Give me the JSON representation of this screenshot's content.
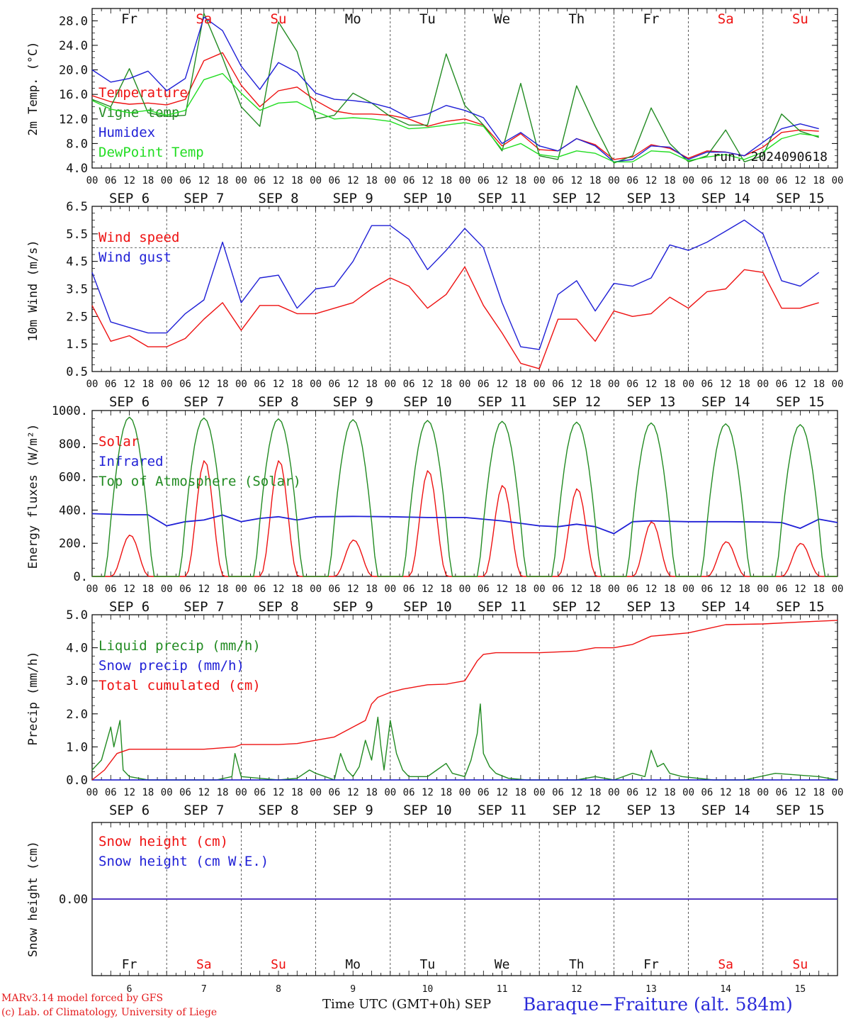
{
  "chart_data": [
    {
      "type": "line",
      "ylabel": "2m Temp. (°C)",
      "ylim": [
        4,
        30
      ],
      "yticks": [
        "4.0",
        "8.0",
        "12.0",
        "16.0",
        "20.0",
        "24.0",
        "28.0"
      ],
      "yticks_values": [
        4,
        8,
        12,
        16,
        20,
        24,
        28
      ],
      "refline": null,
      "annotation": "run: 2024090618",
      "series": [
        {
          "name": "Temperature",
          "color": "#ee1111",
          "x_hours": [
            0,
            6,
            12,
            18,
            24,
            30,
            36,
            42,
            48,
            54,
            60,
            66,
            72,
            78,
            84,
            90,
            96,
            102,
            108,
            114,
            120,
            126,
            132,
            138,
            144,
            150,
            156,
            162,
            168,
            174,
            180,
            186,
            192,
            198,
            204,
            210,
            216,
            222,
            228,
            234
          ],
          "values": [
            15.8,
            14.8,
            14.4,
            14.6,
            14.3,
            15.2,
            21.5,
            22.8,
            17.5,
            14.0,
            16.6,
            17.2,
            15.0,
            13.3,
            12.8,
            12.8,
            12.6,
            12.0,
            10.8,
            11.6,
            12.0,
            11.0,
            7.6,
            9.6,
            7.0,
            6.8,
            8.8,
            7.8,
            5.4,
            5.8,
            7.8,
            7.2,
            5.6,
            6.8,
            6.6,
            6.0,
            7.4,
            9.8,
            10.2,
            10.0
          ]
        },
        {
          "name": "Vigne temp",
          "color": "#228b22",
          "x_hours": [
            0,
            6,
            12,
            18,
            24,
            30,
            36,
            42,
            48,
            54,
            60,
            66,
            72,
            78,
            84,
            90,
            96,
            102,
            108,
            114,
            120,
            126,
            132,
            138,
            144,
            150,
            156,
            162,
            168,
            174,
            180,
            186,
            192,
            198,
            204,
            210,
            216,
            222,
            228,
            234
          ],
          "values": [
            15.2,
            14.0,
            20.2,
            13.0,
            12.4,
            12.6,
            29.2,
            22.0,
            14.0,
            10.8,
            27.8,
            23.0,
            12.0,
            12.6,
            16.2,
            14.6,
            12.4,
            11.0,
            11.0,
            22.6,
            14.2,
            11.0,
            6.8,
            17.8,
            6.0,
            5.4,
            17.4,
            10.8,
            4.8,
            6.0,
            13.8,
            8.0,
            5.0,
            6.0,
            10.2,
            5.0,
            6.0,
            12.8,
            10.0,
            9.0
          ]
        },
        {
          "name": "Humidex",
          "color": "#1f1fd6",
          "x_hours": [
            0,
            6,
            12,
            18,
            24,
            30,
            36,
            42,
            48,
            54,
            60,
            66,
            72,
            78,
            84,
            90,
            96,
            102,
            108,
            114,
            120,
            126,
            132,
            138,
            144,
            150,
            156,
            162,
            168,
            174,
            180,
            186,
            192,
            198,
            204,
            210,
            216,
            222,
            228,
            234
          ],
          "values": [
            20.0,
            18.0,
            18.6,
            19.8,
            16.6,
            18.6,
            28.6,
            26.4,
            20.6,
            16.8,
            21.2,
            19.6,
            16.2,
            15.2,
            15.0,
            14.6,
            13.8,
            12.2,
            12.8,
            14.2,
            13.4,
            12.2,
            8.0,
            9.8,
            7.6,
            6.8,
            8.8,
            7.6,
            5.0,
            5.4,
            7.6,
            7.4,
            5.4,
            6.6,
            6.6,
            6.0,
            8.2,
            10.4,
            11.2,
            10.4
          ]
        },
        {
          "name": "DewPoint Temp",
          "color": "#22dd22",
          "x_hours": [
            0,
            6,
            12,
            18,
            24,
            30,
            36,
            42,
            48,
            54,
            60,
            66,
            72,
            78,
            84,
            90,
            96,
            102,
            108,
            114,
            120,
            126,
            132,
            138,
            144,
            150,
            156,
            162,
            168,
            174,
            180,
            186,
            192,
            198,
            204,
            210,
            216,
            222,
            228,
            234
          ],
          "values": [
            15.0,
            13.6,
            13.0,
            13.4,
            12.6,
            13.4,
            18.4,
            19.4,
            16.2,
            13.4,
            14.6,
            14.8,
            13.2,
            12.0,
            12.2,
            12.0,
            11.6,
            10.4,
            10.6,
            11.0,
            11.4,
            10.8,
            7.0,
            8.0,
            6.2,
            5.8,
            6.8,
            6.4,
            5.0,
            5.0,
            6.8,
            6.6,
            5.2,
            5.8,
            6.2,
            5.4,
            6.6,
            8.8,
            9.6,
            9.2
          ]
        }
      ]
    },
    {
      "type": "line",
      "ylabel": "10m Wind (m/s)",
      "ylim": [
        0.5,
        6.5
      ],
      "yticks": [
        "0.5",
        "1.5",
        "2.5",
        "3.5",
        "4.5",
        "5.5",
        "6.5"
      ],
      "yticks_values": [
        0.5,
        1.5,
        2.5,
        3.5,
        4.5,
        5.5,
        6.5
      ],
      "refline": 5,
      "series": [
        {
          "name": "Wind speed",
          "color": "#ee1111",
          "x_hours": [
            0,
            6,
            12,
            18,
            24,
            30,
            36,
            42,
            48,
            54,
            60,
            66,
            72,
            78,
            84,
            90,
            96,
            102,
            108,
            114,
            120,
            126,
            132,
            138,
            144,
            150,
            156,
            162,
            168,
            174,
            180,
            186,
            192,
            198,
            204,
            210,
            216,
            222,
            228,
            234
          ],
          "values": [
            2.9,
            1.6,
            1.8,
            1.4,
            1.4,
            1.7,
            2.4,
            3.0,
            2.0,
            2.9,
            2.9,
            2.6,
            2.6,
            2.8,
            3.0,
            3.5,
            3.9,
            3.6,
            2.8,
            3.3,
            4.3,
            2.9,
            1.9,
            0.8,
            0.6,
            2.4,
            2.4,
            1.6,
            2.7,
            2.5,
            2.6,
            3.2,
            2.8,
            3.4,
            3.5,
            4.2,
            4.1,
            2.8,
            2.8,
            3.0
          ]
        },
        {
          "name": "Wind gust",
          "color": "#1f1fd6",
          "x_hours": [
            0,
            6,
            12,
            18,
            24,
            30,
            36,
            42,
            48,
            54,
            60,
            66,
            72,
            78,
            84,
            90,
            96,
            102,
            108,
            114,
            120,
            126,
            132,
            138,
            144,
            150,
            156,
            162,
            168,
            174,
            180,
            186,
            192,
            198,
            204,
            210,
            216,
            222,
            228,
            234
          ],
          "values": [
            4.1,
            2.3,
            2.1,
            1.9,
            1.9,
            2.6,
            3.1,
            5.2,
            3.0,
            3.9,
            4.0,
            2.8,
            3.5,
            3.6,
            4.5,
            5.8,
            5.8,
            5.3,
            4.2,
            4.9,
            5.7,
            5.0,
            3.0,
            1.4,
            1.3,
            3.3,
            3.8,
            2.7,
            3.7,
            3.6,
            3.9,
            5.1,
            4.9,
            5.2,
            5.6,
            6.0,
            5.5,
            3.8,
            3.6,
            4.1
          ]
        }
      ]
    },
    {
      "type": "line",
      "ylabel": "Energy fluxes (W/m²)",
      "ylim": [
        0,
        1000
      ],
      "yticks": [
        "0.",
        "200.",
        "400.",
        "600.",
        "800.",
        "1000."
      ],
      "yticks_values": [
        0,
        200,
        400,
        600,
        800,
        1000
      ],
      "refline": null,
      "series": [
        {
          "name": "Solar",
          "color": "#ee1111",
          "daily_peaks": [
            250,
            700,
            700,
            220,
            640,
            550,
            530,
            330,
            210,
            200
          ]
        },
        {
          "name": "Infrared",
          "color": "#1f1fd6",
          "x_hours": [
            0,
            12,
            18,
            24,
            30,
            36,
            42,
            48,
            54,
            60,
            66,
            72,
            84,
            96,
            108,
            120,
            132,
            144,
            150,
            156,
            162,
            168,
            174,
            180,
            192,
            204,
            216,
            222,
            228,
            234,
            240
          ],
          "values": [
            378,
            372,
            372,
            305,
            330,
            340,
            370,
            330,
            350,
            360,
            340,
            360,
            362,
            360,
            355,
            355,
            335,
            305,
            300,
            315,
            300,
            258,
            330,
            335,
            330,
            330,
            328,
            325,
            290,
            345,
            325
          ]
        },
        {
          "name": "Top of Atmosphere (Solar)",
          "color": "#228b22",
          "daily_peaks": [
            960,
            955,
            950,
            945,
            940,
            935,
            930,
            925,
            920,
            915
          ]
        }
      ]
    },
    {
      "type": "line",
      "ylabel": "Precip (mm/h)",
      "ylim": [
        0,
        5
      ],
      "yticks": [
        "0.0",
        "1.0",
        "2.0",
        "3.0",
        "4.0",
        "5.0"
      ],
      "yticks_values": [
        0,
        1,
        2,
        3,
        4,
        5
      ],
      "refline": null,
      "series": [
        {
          "name": "Liquid precip (mm/h)",
          "color": "#228b22",
          "x_hours": [
            0,
            3,
            6,
            7,
            9,
            10,
            12,
            15,
            18,
            24,
            36,
            40,
            45,
            46,
            48,
            60,
            66,
            70,
            72,
            75,
            78,
            80,
            82,
            84,
            86,
            88,
            90,
            92,
            93,
            94,
            96,
            98,
            100,
            102,
            108,
            111,
            114,
            116,
            120,
            122,
            124,
            125,
            126,
            128,
            130,
            134,
            140,
            156,
            162,
            168,
            174,
            178,
            180,
            182,
            184,
            186,
            190,
            200,
            210,
            220,
            234,
            240
          ],
          "values": [
            0.3,
            0.6,
            1.6,
            1.0,
            1.8,
            0.3,
            0.1,
            0.05,
            0.0,
            0.0,
            0.0,
            0.0,
            0.1,
            0.8,
            0.1,
            0.0,
            0.05,
            0.3,
            0.2,
            0.1,
            0.0,
            0.8,
            0.3,
            0.1,
            0.4,
            1.2,
            0.6,
            1.9,
            1.0,
            0.3,
            1.8,
            0.8,
            0.3,
            0.1,
            0.1,
            0.3,
            0.5,
            0.2,
            0.1,
            0.6,
            1.4,
            2.3,
            0.8,
            0.4,
            0.2,
            0.05,
            0.0,
            0.0,
            0.1,
            0.0,
            0.2,
            0.1,
            0.9,
            0.4,
            0.5,
            0.2,
            0.1,
            0.0,
            0.0,
            0.2,
            0.1,
            0.0
          ]
        },
        {
          "name": "Snow precip (mm/h)",
          "color": "#1f1fd6",
          "x_hours": [
            0,
            240
          ],
          "values": [
            0,
            0
          ]
        },
        {
          "name": "Total cumulated (cm)",
          "color": "#ee1111",
          "x_hours": [
            0,
            4,
            8,
            12,
            24,
            36,
            46,
            48,
            60,
            66,
            72,
            78,
            84,
            88,
            90,
            92,
            96,
            100,
            108,
            114,
            120,
            122,
            124,
            126,
            130,
            144,
            156,
            162,
            168,
            174,
            180,
            186,
            192,
            204,
            216,
            228,
            240
          ],
          "values": [
            0.0,
            0.3,
            0.8,
            0.93,
            0.93,
            0.93,
            1.0,
            1.07,
            1.07,
            1.1,
            1.2,
            1.3,
            1.6,
            1.8,
            2.3,
            2.5,
            2.65,
            2.75,
            2.88,
            2.9,
            3.0,
            3.3,
            3.6,
            3.8,
            3.85,
            3.85,
            3.9,
            4.0,
            4.0,
            4.1,
            4.35,
            4.4,
            4.45,
            4.7,
            4.72,
            4.78,
            4.83
          ]
        }
      ]
    },
    {
      "type": "line",
      "ylabel": "Snow height (cm)",
      "ylim": [
        -1,
        1
      ],
      "yticks": [
        "0.00"
      ],
      "yticks_values": [
        0
      ],
      "refline": null,
      "series": [
        {
          "name": "Snow height (cm)",
          "color": "#ee1111",
          "x_hours": [
            0,
            240
          ],
          "values": [
            0,
            0
          ]
        },
        {
          "name": "Snow height (cm W.E.)",
          "color": "#1f1fd6",
          "x_hours": [
            0,
            240
          ],
          "values": [
            0,
            0
          ]
        }
      ]
    }
  ],
  "axis": {
    "hour_ticks": [
      "00",
      "06",
      "12",
      "18"
    ],
    "day_names": [
      "Fr",
      "Sa",
      "Su",
      "Mo",
      "Tu",
      "We",
      "Th",
      "Fr",
      "Sa",
      "Su"
    ],
    "day_name_colors": [
      "#111111",
      "#ee1111",
      "#ee1111",
      "#111111",
      "#111111",
      "#111111",
      "#111111",
      "#111111",
      "#ee1111",
      "#ee1111"
    ],
    "date_labels": [
      "SEP  6",
      "SEP  7",
      "SEP  8",
      "SEP  9",
      "SEP 10",
      "SEP 11",
      "SEP 12",
      "SEP 13",
      "SEP 14",
      "SEP 15"
    ],
    "day_numbers": [
      "6",
      "7",
      "8",
      "9",
      "10",
      "11",
      "12",
      "13",
      "14",
      "15"
    ]
  },
  "footer": {
    "credit_line1": "MARv3.14 model forced by GFS",
    "credit_line2": "(c) Lab. of Climatology, University of Liege",
    "x_title": "Time UTC (GMT+0h) SEP",
    "station": "Baraque−Fraiture (alt. 584m)"
  }
}
